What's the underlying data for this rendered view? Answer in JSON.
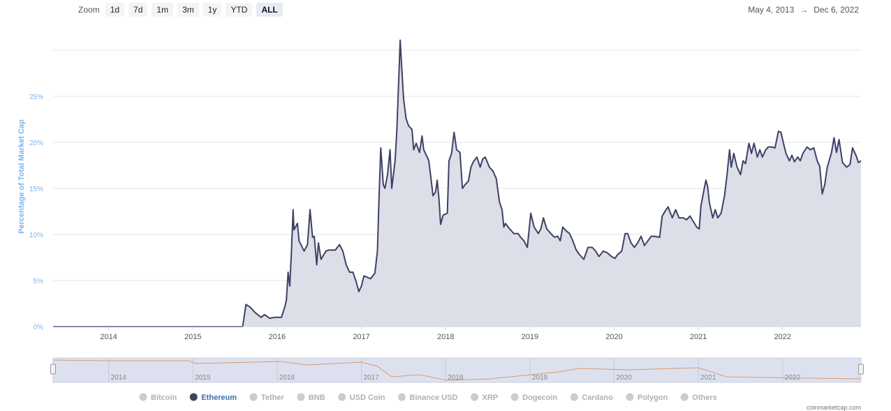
{
  "zoom": {
    "label": "Zoom",
    "buttons": [
      "1d",
      "7d",
      "1m",
      "3m",
      "1y",
      "YTD",
      "ALL"
    ],
    "selected": 6
  },
  "date_range": {
    "from": "May 4, 2013",
    "separator": "→",
    "to": "Dec 6, 2022"
  },
  "source": "coinmarketcap.com",
  "chart_data": {
    "type": "area",
    "y_label": "Percentage of Total Market Cap",
    "x": [
      2013.34,
      2015.59,
      2015.63,
      2015.68,
      2015.74,
      2015.81,
      2015.85,
      2015.91,
      2015.97,
      2016.05,
      2016.09,
      2016.11,
      2016.13,
      2016.15,
      2016.17,
      2016.19,
      2016.2,
      2016.24,
      2016.26,
      2016.32,
      2016.36,
      2016.39,
      2016.42,
      2016.44,
      2016.47,
      2016.49,
      2016.52,
      2016.58,
      2016.61,
      2016.69,
      2016.74,
      2016.78,
      2016.82,
      2016.86,
      2016.9,
      2016.94,
      2016.97,
      2017.0,
      2017.03,
      2017.11,
      2017.16,
      2017.19,
      2017.21,
      2017.23,
      2017.26,
      2017.28,
      2017.31,
      2017.34,
      2017.36,
      2017.4,
      2017.42,
      2017.45,
      2017.46,
      2017.48,
      2017.5,
      2017.53,
      2017.56,
      2017.6,
      2017.62,
      2017.65,
      2017.69,
      2017.72,
      2017.74,
      2017.78,
      2017.8,
      2017.84,
      2017.85,
      2017.88,
      2017.9,
      2017.92,
      2017.94,
      2017.97,
      2018.02,
      2018.04,
      2018.07,
      2018.1,
      2018.13,
      2018.17,
      2018.2,
      2018.23,
      2018.27,
      2018.3,
      2018.33,
      2018.37,
      2018.41,
      2018.44,
      2018.47,
      2018.52,
      2018.56,
      2018.6,
      2018.64,
      2018.67,
      2018.69,
      2018.71,
      2018.76,
      2018.81,
      2018.86,
      2018.89,
      2018.93,
      2018.97,
      2019.01,
      2019.05,
      2019.1,
      2019.13,
      2019.16,
      2019.2,
      2019.24,
      2019.29,
      2019.33,
      2019.36,
      2019.39,
      2019.43,
      2019.47,
      2019.51,
      2019.55,
      2019.59,
      2019.64,
      2019.69,
      2019.74,
      2019.78,
      2019.82,
      2019.87,
      2019.92,
      2019.97,
      2020.01,
      2020.04,
      2020.09,
      2020.13,
      2020.16,
      2020.2,
      2020.24,
      2020.28,
      2020.32,
      2020.36,
      2020.4,
      2020.44,
      2020.48,
      2020.54,
      2020.57,
      2020.61,
      2020.64,
      2020.69,
      2020.73,
      2020.77,
      2020.82,
      2020.86,
      2020.9,
      2020.94,
      2020.98,
      2021.01,
      2021.03,
      2021.07,
      2021.09,
      2021.11,
      2021.13,
      2021.17,
      2021.2,
      2021.23,
      2021.27,
      2021.31,
      2021.34,
      2021.37,
      2021.39,
      2021.42,
      2021.46,
      2021.5,
      2021.53,
      2021.56,
      2021.6,
      2021.63,
      2021.66,
      2021.7,
      2021.73,
      2021.76,
      2021.8,
      2021.83,
      2021.87,
      2021.91,
      2021.95,
      2021.98,
      2022.01,
      2022.04,
      2022.08,
      2022.11,
      2022.14,
      2022.18,
      2022.21,
      2022.24,
      2022.29,
      2022.33,
      2022.37,
      2022.41,
      2022.44,
      2022.47,
      2022.5,
      2022.53,
      2022.58,
      2022.61,
      2022.64,
      2022.67,
      2022.71,
      2022.76,
      2022.8,
      2022.83,
      2022.87,
      2022.9,
      2022.93
    ],
    "series": [
      {
        "name": "Bitcoin",
        "visible": false
      },
      {
        "name": "Ethereum",
        "visible": true,
        "color": "#3d4166",
        "fill": "#dcdee8",
        "values": [
          0,
          0,
          2.4,
          2.1,
          1.5,
          1.0,
          1.3,
          0.9,
          1.0,
          1.0,
          2.1,
          2.9,
          5.9,
          4.4,
          8.2,
          12.7,
          10.5,
          11.2,
          9.3,
          8.2,
          8.9,
          12.7,
          9.7,
          9.8,
          6.7,
          9.1,
          7.3,
          8.2,
          8.3,
          8.3,
          8.9,
          8.2,
          6.7,
          5.9,
          5.9,
          4.8,
          3.8,
          4.4,
          5.5,
          5.2,
          5.8,
          8.2,
          14.2,
          19.4,
          15.4,
          15.0,
          16.5,
          19.2,
          15.0,
          18.0,
          21.1,
          28.6,
          31.1,
          27.9,
          24.8,
          22.6,
          21.8,
          21.4,
          19.2,
          19.9,
          18.9,
          20.7,
          19.2,
          18.4,
          18.0,
          15.0,
          14.2,
          14.6,
          15.9,
          13.9,
          11.1,
          12.1,
          12.3,
          18.0,
          18.8,
          21.1,
          19.2,
          18.9,
          15.0,
          15.4,
          15.8,
          17.3,
          17.9,
          18.4,
          17.3,
          18.2,
          18.4,
          17.3,
          16.9,
          16.1,
          13.5,
          12.7,
          10.8,
          11.2,
          10.6,
          10.1,
          10.1,
          9.7,
          9.3,
          8.6,
          12.3,
          10.8,
          10.1,
          10.6,
          11.8,
          10.6,
          10.2,
          9.7,
          9.8,
          9.3,
          10.8,
          10.4,
          10.1,
          9.3,
          8.3,
          7.8,
          7.3,
          8.6,
          8.6,
          8.2,
          7.6,
          8.2,
          8.0,
          7.6,
          7.4,
          7.8,
          8.2,
          10.1,
          10.1,
          9.1,
          8.6,
          9.1,
          9.8,
          8.8,
          9.3,
          9.8,
          9.8,
          9.7,
          12.0,
          12.6,
          13.0,
          11.8,
          12.7,
          11.8,
          11.8,
          11.6,
          12.0,
          11.4,
          10.8,
          10.6,
          13.1,
          15.0,
          15.9,
          15.2,
          13.5,
          11.8,
          12.7,
          11.8,
          12.3,
          14.2,
          16.5,
          19.2,
          17.3,
          18.8,
          17.3,
          16.5,
          18.0,
          17.7,
          19.9,
          18.8,
          19.9,
          18.4,
          19.2,
          18.4,
          19.2,
          19.5,
          19.5,
          19.4,
          21.2,
          21.1,
          19.9,
          18.8,
          18.0,
          18.6,
          17.9,
          18.4,
          18.0,
          18.8,
          19.5,
          19.2,
          19.4,
          18.0,
          17.4,
          14.4,
          15.4,
          17.3,
          18.9,
          20.5,
          18.9,
          20.3,
          17.8,
          17.3,
          17.6,
          19.4,
          18.6,
          17.8,
          18.0
        ]
      },
      {
        "name": "Tether",
        "visible": false
      },
      {
        "name": "BNB",
        "visible": false
      },
      {
        "name": "USD Coin",
        "visible": false
      },
      {
        "name": "Binance USD",
        "visible": false
      },
      {
        "name": "XRP",
        "visible": false
      },
      {
        "name": "Dogecoin",
        "visible": false
      },
      {
        "name": "Cardano",
        "visible": false
      },
      {
        "name": "Polygon",
        "visible": false
      },
      {
        "name": "Others",
        "visible": false
      }
    ],
    "xlim": [
      2013.34,
      2022.93
    ],
    "xticks": [
      2014,
      2015,
      2016,
      2017,
      2018,
      2019,
      2020,
      2021,
      2022
    ],
    "ylim": [
      0,
      32
    ],
    "yticks": [
      {
        "value": 0,
        "label": "0%"
      },
      {
        "value": 5,
        "label": "5%"
      },
      {
        "value": 10,
        "label": "10%"
      },
      {
        "value": 15,
        "label": "15%"
      },
      {
        "value": 20,
        "label": "20%"
      },
      {
        "value": 25,
        "label": "25%"
      }
    ],
    "grid": true,
    "hidden_color": "#cccccc",
    "navigator": {
      "color": "#d99a6c",
      "x": [
        2013.34,
        2013.96,
        2014.95,
        2015.04,
        2016.03,
        2016.36,
        2017.0,
        2017.19,
        2017.36,
        2017.69,
        2018.02,
        2018.52,
        2019.34,
        2019.59,
        2020.17,
        2021.0,
        2021.33,
        2021.83,
        2022.93
      ],
      "values": [
        93.1,
        90.9,
        90.9,
        81.7,
        88.6,
        77.1,
        86.3,
        72.6,
        38.3,
        45.1,
        26.9,
        31.4,
        54.3,
        65.7,
        61.1,
        68.0,
        38.3,
        36.0,
        31.4
      ],
      "ylim": [
        20,
        100
      ]
    }
  }
}
